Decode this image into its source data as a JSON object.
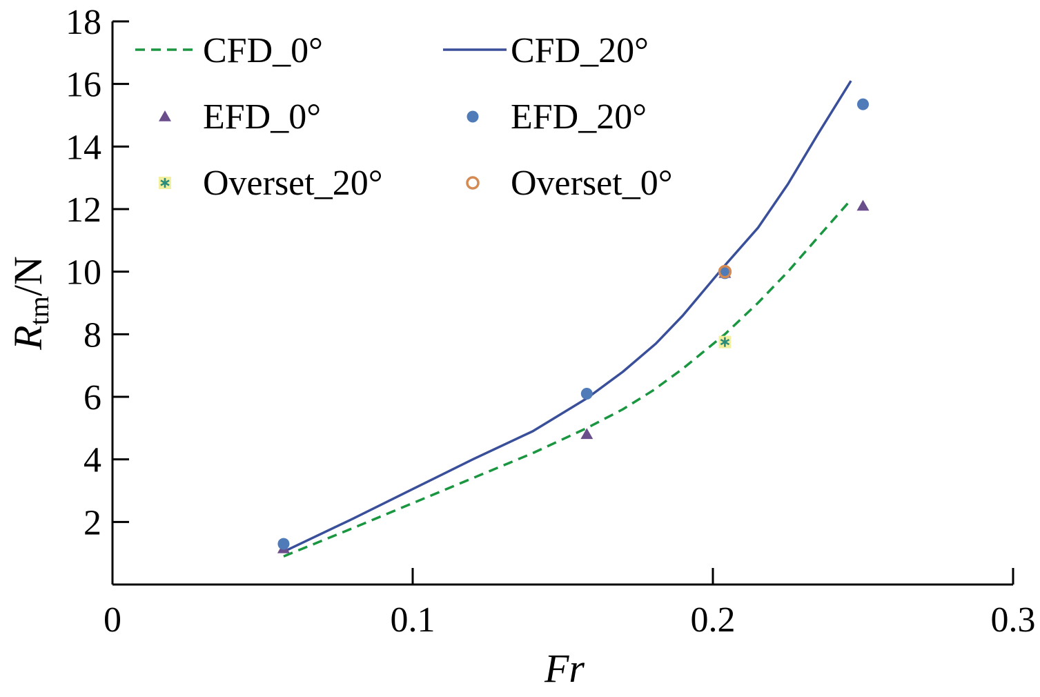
{
  "chart_data": {
    "type": "line",
    "xlabel": "Fr",
    "ylabel": {
      "main": "R",
      "sub": "tm",
      "unit": "/N"
    },
    "xlim": [
      0,
      0.3
    ],
    "ylim": [
      0,
      18
    ],
    "xticks": [
      0,
      0.1,
      0.2,
      0.3
    ],
    "xtick_labels": [
      "0",
      "0.1",
      "0.2",
      "0.3"
    ],
    "yticks": [
      2,
      4,
      6,
      8,
      10,
      12,
      14,
      16,
      18
    ],
    "ytick_labels": [
      "2",
      "4",
      "6",
      "8",
      "10",
      "12",
      "14",
      "16",
      "18"
    ],
    "grid": false,
    "legend_position": "top-left",
    "series": [
      {
        "name": "CFD_0°",
        "kind": "line",
        "style": "dashed",
        "color": "#1a9641",
        "x": [
          0.057,
          0.08,
          0.1,
          0.12,
          0.14,
          0.158,
          0.17,
          0.18,
          0.19,
          0.204,
          0.215,
          0.225,
          0.235,
          0.246
        ],
        "y": [
          0.9,
          1.8,
          2.6,
          3.4,
          4.2,
          5.0,
          5.6,
          6.2,
          6.9,
          8.0,
          9.0,
          10.0,
          11.1,
          12.3
        ]
      },
      {
        "name": "CFD_20°",
        "kind": "line",
        "style": "solid",
        "color": "#3a4f9a",
        "x": [
          0.057,
          0.08,
          0.1,
          0.12,
          0.14,
          0.158,
          0.17,
          0.181,
          0.19,
          0.204,
          0.215,
          0.225,
          0.235,
          0.246
        ],
        "y": [
          1.05,
          2.1,
          3.05,
          4.0,
          4.9,
          5.95,
          6.8,
          7.7,
          8.6,
          10.2,
          11.4,
          12.8,
          14.4,
          16.1
        ]
      },
      {
        "name": "EFD_0°",
        "kind": "marker",
        "marker": "triangle",
        "color": "#6a4e8c",
        "x": [
          0.057,
          0.158,
          0.204,
          0.25
        ],
        "y": [
          1.15,
          4.8,
          9.95,
          12.1
        ]
      },
      {
        "name": "EFD_20°",
        "kind": "marker",
        "marker": "circle",
        "color": "#4f7bb8",
        "x": [
          0.057,
          0.158,
          0.204,
          0.25
        ],
        "y": [
          1.3,
          6.1,
          9.95,
          15.35
        ]
      },
      {
        "name": "Overset_20°",
        "kind": "marker",
        "marker": "asterisk-square",
        "color": "#2a8c7a",
        "fill": "#f2f0a0",
        "x": [
          0.204
        ],
        "y": [
          7.75
        ]
      },
      {
        "name": "Overset_0°",
        "kind": "marker",
        "marker": "open-circle",
        "color": "#d48a52",
        "x": [
          0.204
        ],
        "y": [
          10.0
        ]
      }
    ],
    "legend": [
      {
        "label": "CFD_0°",
        "series": 0
      },
      {
        "label": "CFD_20°",
        "series": 1
      },
      {
        "label": "EFD_0°",
        "series": 2
      },
      {
        "label": "EFD_20°",
        "series": 3
      },
      {
        "label": "Overset_20°",
        "series": 4
      },
      {
        "label": "Overset_0°",
        "series": 5
      }
    ]
  }
}
